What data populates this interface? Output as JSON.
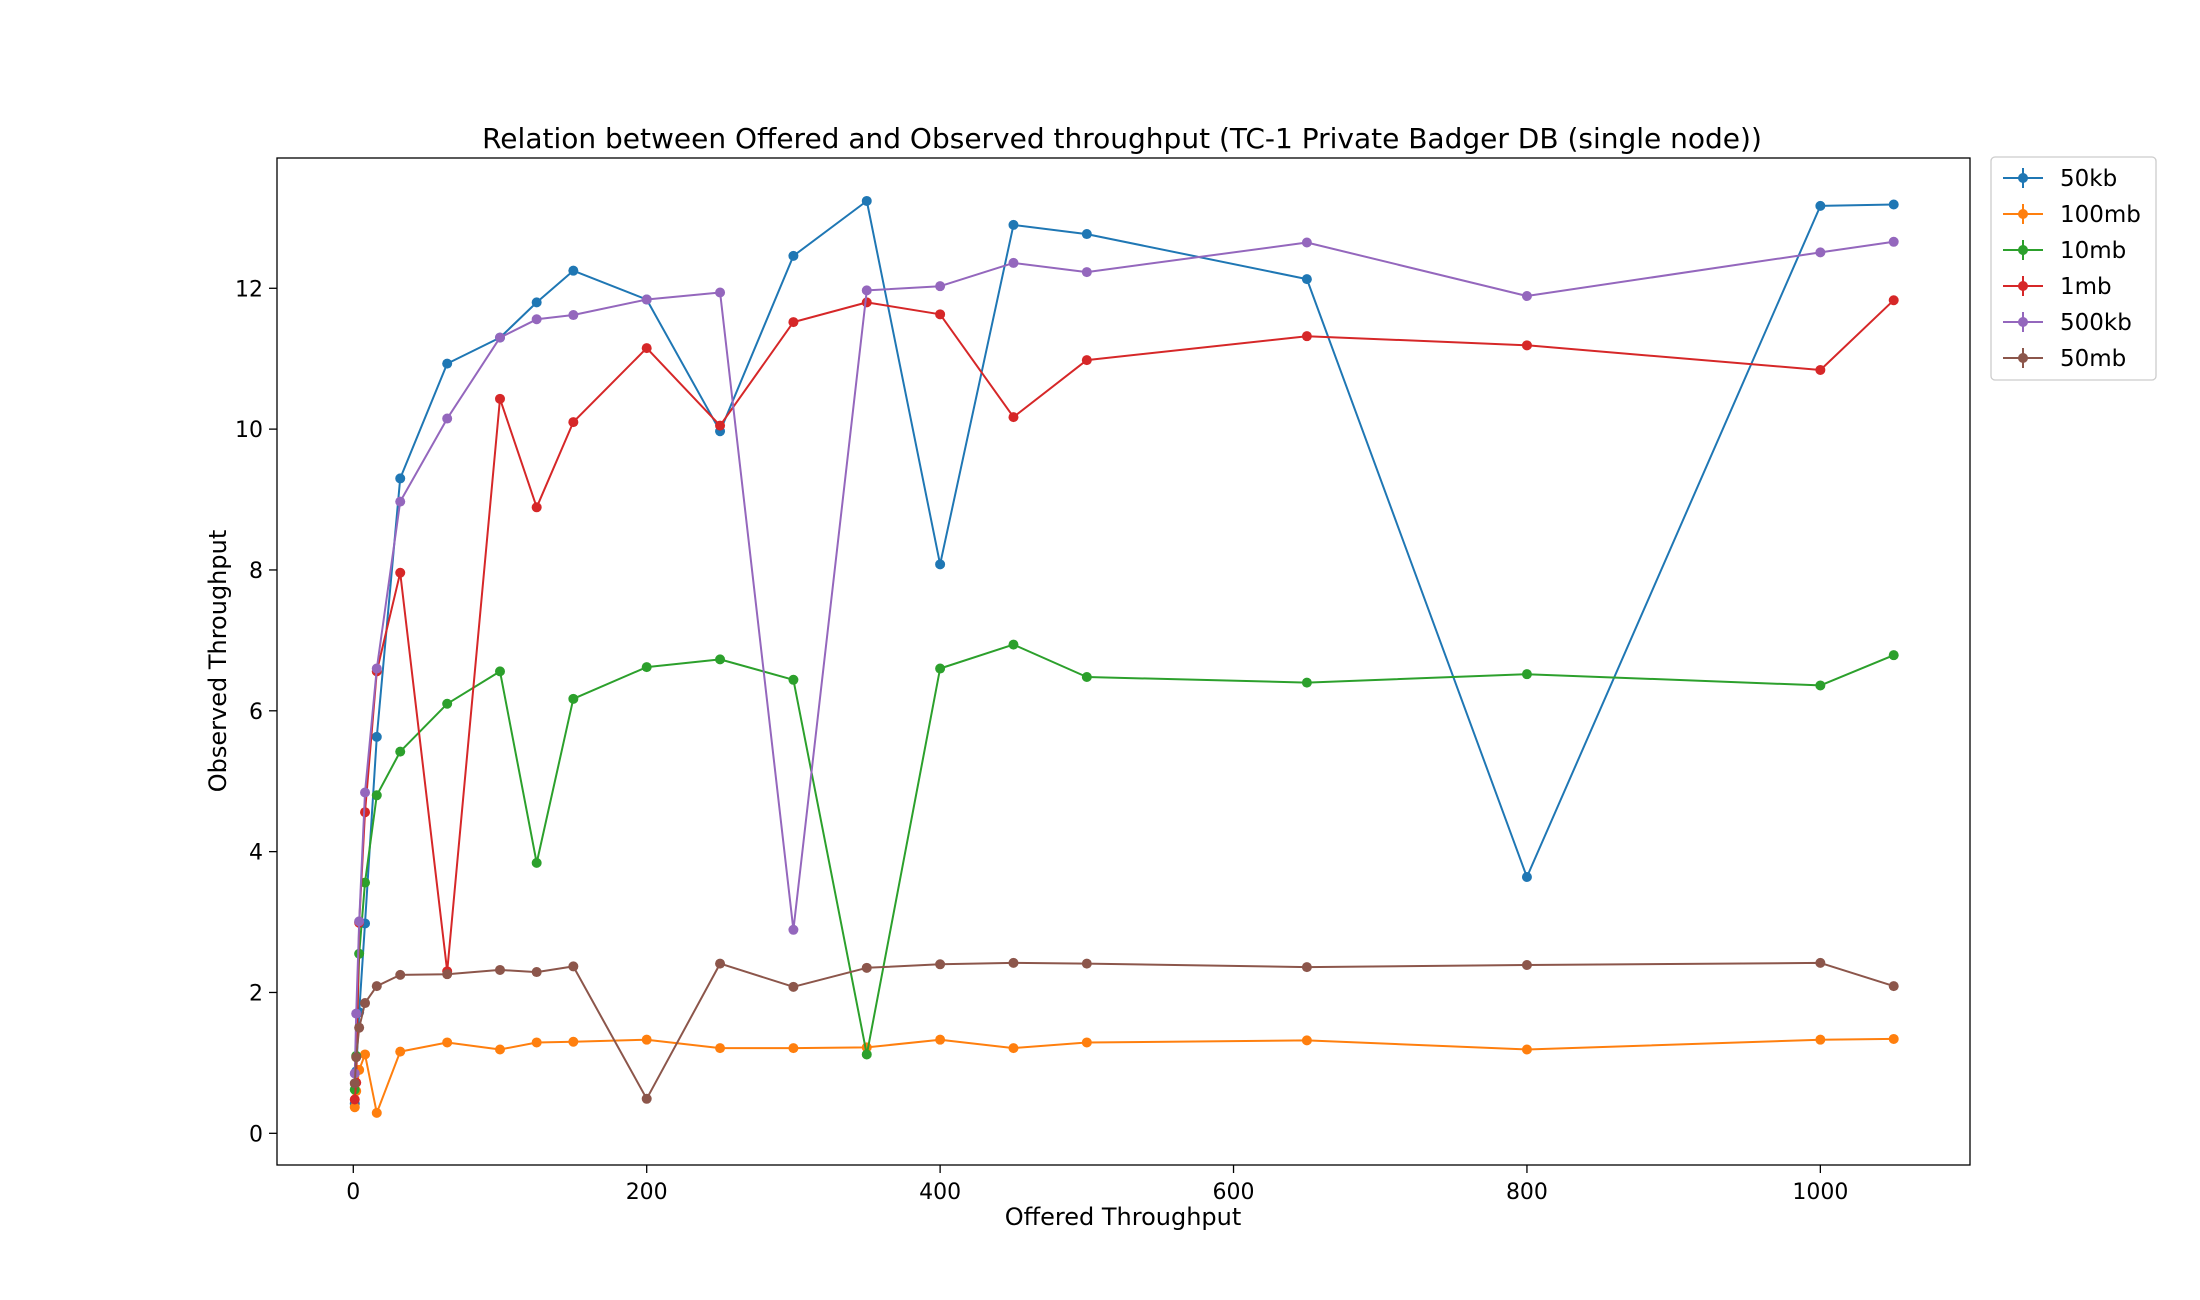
{
  "chart_data": {
    "type": "line",
    "title": "Relation between Offered and Observed throughput (TC-1  Private Badger DB (single node))",
    "xlabel": "Offered Throughput",
    "ylabel": "Observed Throughput",
    "xlim": [
      -52,
      1102
    ],
    "ylim": [
      -0.45,
      13.85
    ],
    "xticks": [
      0,
      200,
      400,
      600,
      800,
      1000
    ],
    "yticks": [
      0,
      2,
      4,
      6,
      8,
      10,
      12
    ],
    "grid": false,
    "legend_position": "outside top-right",
    "series": [
      {
        "name": "50kb",
        "color": "#1f77b4",
        "x": [
          1,
          2,
          4,
          8,
          16,
          32,
          64,
          100,
          125,
          150,
          200,
          250,
          300,
          350,
          400,
          450,
          500,
          650,
          800,
          1000,
          1050
        ],
        "y": [
          0.42,
          0.88,
          1.72,
          2.98,
          5.63,
          9.3,
          10.93,
          11.3,
          11.8,
          12.25,
          11.84,
          9.97,
          12.46,
          13.24,
          8.08,
          12.9,
          12.77,
          12.13,
          3.64,
          13.17,
          13.19
        ]
      },
      {
        "name": "100mb",
        "color": "#ff7f0e",
        "x": [
          1,
          2,
          4,
          8,
          16,
          32,
          64,
          100,
          125,
          150,
          200,
          250,
          300,
          350,
          400,
          450,
          500,
          650,
          800,
          1000,
          1050
        ],
        "y": [
          0.37,
          0.6,
          0.9,
          1.12,
          0.29,
          1.16,
          1.29,
          1.19,
          1.29,
          1.3,
          1.33,
          1.21,
          1.21,
          1.22,
          1.33,
          1.21,
          1.29,
          1.32,
          1.19,
          1.33,
          1.34
        ]
      },
      {
        "name": "10mb",
        "color": "#2ca02c",
        "x": [
          1,
          2,
          4,
          8,
          16,
          32,
          64,
          100,
          125,
          150,
          200,
          250,
          300,
          350,
          400,
          450,
          500,
          650,
          800,
          1000,
          1050
        ],
        "y": [
          0.62,
          1.1,
          2.55,
          3.56,
          4.8,
          5.42,
          6.1,
          6.56,
          3.84,
          6.17,
          6.62,
          6.73,
          6.44,
          1.12,
          6.6,
          6.94,
          6.48,
          6.4,
          6.52,
          6.36,
          6.79
        ]
      },
      {
        "name": "1mb",
        "color": "#d62728",
        "x": [
          1,
          2,
          4,
          8,
          16,
          32,
          64,
          100,
          125,
          150,
          200,
          250,
          300,
          350,
          400,
          450,
          500,
          650,
          800,
          1000,
          1050
        ],
        "y": [
          0.48,
          0.72,
          2.99,
          4.56,
          6.56,
          7.96,
          2.3,
          10.43,
          8.89,
          10.1,
          11.15,
          10.05,
          11.52,
          11.8,
          11.63,
          10.17,
          10.98,
          11.32,
          11.19,
          10.84,
          11.83
        ]
      },
      {
        "name": "500kb",
        "color": "#9467bd",
        "x": [
          1,
          2,
          4,
          8,
          16,
          32,
          64,
          100,
          125,
          150,
          200,
          250,
          300,
          350,
          400,
          450,
          500,
          650,
          800,
          1000,
          1050
        ],
        "y": [
          0.85,
          1.7,
          3.01,
          4.84,
          6.6,
          8.97,
          10.15,
          11.3,
          11.56,
          11.62,
          11.84,
          11.94,
          2.89,
          11.97,
          12.03,
          12.36,
          12.23,
          12.65,
          11.89,
          12.51,
          12.66
        ]
      },
      {
        "name": "50mb",
        "color": "#8c564b",
        "x": [
          1,
          2,
          4,
          8,
          16,
          32,
          64,
          100,
          125,
          150,
          200,
          250,
          300,
          350,
          400,
          450,
          500,
          650,
          800,
          1000,
          1050
        ],
        "y": [
          0.71,
          1.08,
          1.5,
          1.85,
          2.09,
          2.25,
          2.26,
          2.32,
          2.29,
          2.37,
          0.49,
          2.41,
          2.08,
          2.35,
          2.4,
          2.42,
          2.41,
          2.36,
          2.39,
          2.42,
          2.09
        ]
      }
    ]
  }
}
